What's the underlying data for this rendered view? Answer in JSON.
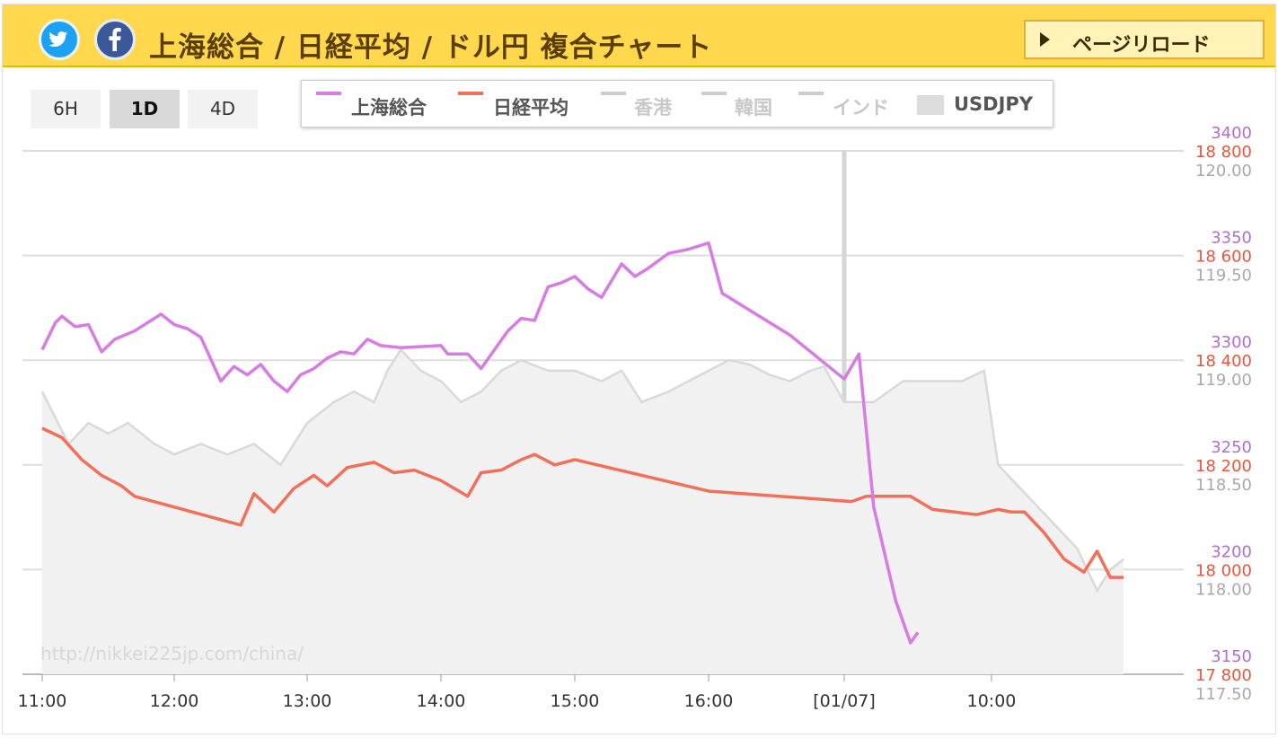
{
  "header": {
    "title": "上海総合 / 日経平均 / ドル円 複合チャート",
    "reload_label": "ページリロード",
    "colors": {
      "bar": "#ffd84d"
    }
  },
  "social": {
    "twitter_icon": "twitter-icon",
    "facebook_icon": "facebook-icon"
  },
  "range_buttons": [
    {
      "label": "6H"
    },
    {
      "label": "1D",
      "active": true
    },
    {
      "label": "4D"
    }
  ],
  "legend": {
    "items": [
      {
        "label": "上海総合",
        "color": "#d67ce2",
        "active": true
      },
      {
        "label": "日経平均",
        "color": "#f2705a",
        "active": true
      },
      {
        "label": "香港",
        "color": "#cccccc",
        "active": false
      },
      {
        "label": "韓国",
        "color": "#cccccc",
        "active": false
      },
      {
        "label": "インド",
        "color": "#cccccc",
        "active": false
      },
      {
        "label": "USDJPY",
        "color": "#dcdcdc",
        "active": true
      }
    ]
  },
  "watermark": "http://nikkei225jp.com/china/",
  "chart_data": {
    "type": "line",
    "x_ticks": [
      "11:00",
      "12:00",
      "13:00",
      "14:00",
      "15:00",
      "16:00",
      "[01/07]",
      "10:00"
    ],
    "x_tick_colors": {
      "[01/07]": "#9a9a00"
    },
    "grid": true,
    "axes": {
      "shanghai": {
        "ticks": [
          "3400",
          "3350",
          "3300",
          "3250",
          "3200",
          "3150"
        ],
        "ylim": [
          3150,
          3400
        ],
        "color": "#b06fd0"
      },
      "nikkei": {
        "ticks": [
          "18 800",
          "18 600",
          "18 400",
          "18 200",
          "18 000",
          "17 800"
        ],
        "ylim": [
          17800,
          18800
        ],
        "color": "#e8563c"
      },
      "usdjpy": {
        "ticks": [
          "120.00",
          "119.50",
          "119.00",
          "118.50",
          "118.00",
          "117.50"
        ],
        "ylim": [
          117.5,
          120.0
        ],
        "color": "#a9a9a9"
      }
    },
    "series": [
      {
        "name": "上海総合",
        "axis": "shanghai",
        "color": "#d67ce2",
        "points": [
          [
            0.0,
            3305
          ],
          [
            0.1,
            3318
          ],
          [
            0.15,
            3321
          ],
          [
            0.25,
            3316
          ],
          [
            0.35,
            3317
          ],
          [
            0.45,
            3304
          ],
          [
            0.55,
            3310
          ],
          [
            0.7,
            3314
          ],
          [
            0.9,
            3322
          ],
          [
            1.0,
            3317
          ],
          [
            1.1,
            3315
          ],
          [
            1.2,
            3311
          ],
          [
            1.35,
            3290
          ],
          [
            1.45,
            3297
          ],
          [
            1.55,
            3293
          ],
          [
            1.65,
            3298
          ],
          [
            1.75,
            3290
          ],
          [
            1.85,
            3285
          ],
          [
            1.95,
            3293
          ],
          [
            2.05,
            3296
          ],
          [
            2.15,
            3301
          ],
          [
            2.25,
            3304
          ],
          [
            2.35,
            3303
          ],
          [
            2.45,
            3310
          ],
          [
            2.55,
            3307
          ],
          [
            2.7,
            3306
          ],
          [
            3.0,
            3307
          ],
          [
            3.05,
            3303
          ],
          [
            3.2,
            3303
          ],
          [
            3.3,
            3296
          ],
          [
            3.4,
            3305
          ],
          [
            3.5,
            3314
          ],
          [
            3.6,
            3320
          ],
          [
            3.7,
            3319
          ],
          [
            3.8,
            3335
          ],
          [
            3.9,
            3337
          ],
          [
            4.0,
            3340
          ],
          [
            4.1,
            3334
          ],
          [
            4.2,
            3330
          ],
          [
            4.35,
            3346
          ],
          [
            4.45,
            3340
          ],
          [
            4.55,
            3344
          ],
          [
            4.7,
            3351
          ],
          [
            4.85,
            3353
          ],
          [
            5.0,
            3356
          ],
          [
            5.1,
            3332
          ],
          [
            5.6,
            3312
          ],
          [
            6.0,
            3291
          ],
          [
            6.1,
            3303
          ],
          [
            6.2,
            3230
          ],
          [
            6.35,
            3185
          ],
          [
            6.45,
            3165
          ],
          [
            6.5,
            3170
          ]
        ]
      },
      {
        "name": "日経平均",
        "axis": "nikkei",
        "color": "#f2705a",
        "points": [
          [
            0.0,
            18270
          ],
          [
            0.15,
            18252
          ],
          [
            0.3,
            18210
          ],
          [
            0.45,
            18180
          ],
          [
            0.6,
            18160
          ],
          [
            0.7,
            18140
          ],
          [
            1.5,
            18085
          ],
          [
            1.6,
            18145
          ],
          [
            1.75,
            18110
          ],
          [
            1.9,
            18155
          ],
          [
            2.05,
            18180
          ],
          [
            2.15,
            18160
          ],
          [
            2.3,
            18195
          ],
          [
            2.5,
            18205
          ],
          [
            2.65,
            18185
          ],
          [
            2.8,
            18190
          ],
          [
            3.0,
            18170
          ],
          [
            3.2,
            18140
          ],
          [
            3.3,
            18185
          ],
          [
            3.45,
            18190
          ],
          [
            3.6,
            18210
          ],
          [
            3.7,
            18220
          ],
          [
            3.85,
            18200
          ],
          [
            4.0,
            18210
          ],
          [
            5.0,
            18150
          ],
          [
            6.05,
            18130
          ],
          [
            6.15,
            18140
          ],
          [
            6.3,
            18140
          ],
          [
            6.45,
            18140
          ],
          [
            6.6,
            18115
          ],
          [
            6.75,
            18110
          ],
          [
            6.9,
            18105
          ],
          [
            7.05,
            18115
          ],
          [
            7.15,
            18110
          ],
          [
            7.25,
            18110
          ],
          [
            7.4,
            18070
          ],
          [
            7.55,
            18020
          ],
          [
            7.7,
            17995
          ],
          [
            7.8,
            18035
          ],
          [
            7.9,
            17985
          ],
          [
            8.0,
            17985
          ]
        ]
      },
      {
        "name": "USDJPY",
        "axis": "usdjpy",
        "color": "#d9d9d9",
        "points": [
          [
            0.0,
            118.85
          ],
          [
            0.2,
            118.6
          ],
          [
            0.35,
            118.7
          ],
          [
            0.5,
            118.65
          ],
          [
            0.65,
            118.7
          ],
          [
            0.85,
            118.6
          ],
          [
            1.0,
            118.55
          ],
          [
            1.2,
            118.6
          ],
          [
            1.4,
            118.55
          ],
          [
            1.6,
            118.6
          ],
          [
            1.8,
            118.5
          ],
          [
            2.0,
            118.7
          ],
          [
            2.2,
            118.8
          ],
          [
            2.35,
            118.85
          ],
          [
            2.5,
            118.8
          ],
          [
            2.6,
            118.95
          ],
          [
            2.7,
            119.05
          ],
          [
            2.85,
            118.95
          ],
          [
            3.0,
            118.9
          ],
          [
            3.15,
            118.8
          ],
          [
            3.3,
            118.85
          ],
          [
            3.45,
            118.95
          ],
          [
            3.6,
            119.0
          ],
          [
            3.8,
            118.95
          ],
          [
            4.0,
            118.95
          ],
          [
            4.2,
            118.9
          ],
          [
            4.35,
            118.95
          ],
          [
            4.5,
            118.8
          ],
          [
            4.7,
            118.85
          ],
          [
            4.85,
            118.9
          ],
          [
            5.0,
            118.95
          ],
          [
            5.15,
            119.0
          ],
          [
            5.3,
            118.98
          ],
          [
            5.45,
            118.93
          ],
          [
            5.6,
            118.9
          ],
          [
            5.75,
            118.95
          ],
          [
            5.85,
            118.97
          ],
          [
            6.0,
            118.8
          ],
          [
            6.2,
            118.8
          ],
          [
            6.4,
            118.9
          ],
          [
            6.6,
            118.9
          ],
          [
            6.8,
            118.9
          ],
          [
            6.95,
            118.95
          ],
          [
            7.05,
            118.5
          ],
          [
            7.2,
            118.4
          ],
          [
            7.35,
            118.3
          ],
          [
            7.5,
            118.2
          ],
          [
            7.65,
            118.1
          ],
          [
            7.8,
            117.9
          ],
          [
            7.9,
            118.0
          ],
          [
            8.0,
            118.05
          ]
        ]
      }
    ]
  }
}
